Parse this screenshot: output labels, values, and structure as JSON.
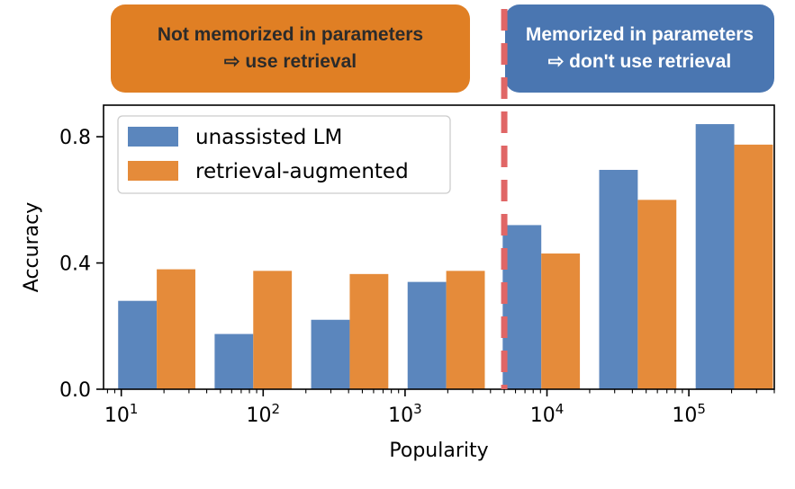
{
  "annotations": {
    "left_line1": "Not memorized in parameters",
    "left_line2": "⇨ use retrieval",
    "right_line1": "Memorized in parameters",
    "right_line2": "⇨ don't use retrieval",
    "left_color": "#e07f24",
    "right_color": "#4a76b1",
    "divider_color": "#e06666"
  },
  "chart_data": {
    "type": "bar",
    "xlabel": "Popularity",
    "ylabel": "Accuracy",
    "ylim": [
      0,
      0.9
    ],
    "yticks": [
      "0.0",
      "0.4",
      "0.8"
    ],
    "ytick_values": [
      0,
      0.4,
      0.8
    ],
    "xscale": "log",
    "xticks": [
      {
        "base": "10",
        "exp": "1",
        "value": 10
      },
      {
        "base": "10",
        "exp": "2",
        "value": 100
      },
      {
        "base": "10",
        "exp": "3",
        "value": 1000
      },
      {
        "base": "10",
        "exp": "4",
        "value": 10000
      },
      {
        "base": "10",
        "exp": "5",
        "value": 100000
      }
    ],
    "xlim": [
      7.5,
      400000
    ],
    "bins_log10_centers": [
      1.25,
      1.93,
      2.61,
      3.29,
      3.96,
      4.64,
      5.32
    ],
    "divider_x": 5000,
    "series": [
      {
        "name": "unassisted LM",
        "color": "#5b86bd",
        "values": [
          0.28,
          0.175,
          0.22,
          0.34,
          0.52,
          0.695,
          0.84
        ]
      },
      {
        "name": "retrieval-augmented",
        "color": "#e58b3a",
        "values": [
          0.38,
          0.375,
          0.365,
          0.375,
          0.43,
          0.6,
          0.775
        ]
      }
    ],
    "legend_position": "upper-left",
    "grid": false
  }
}
